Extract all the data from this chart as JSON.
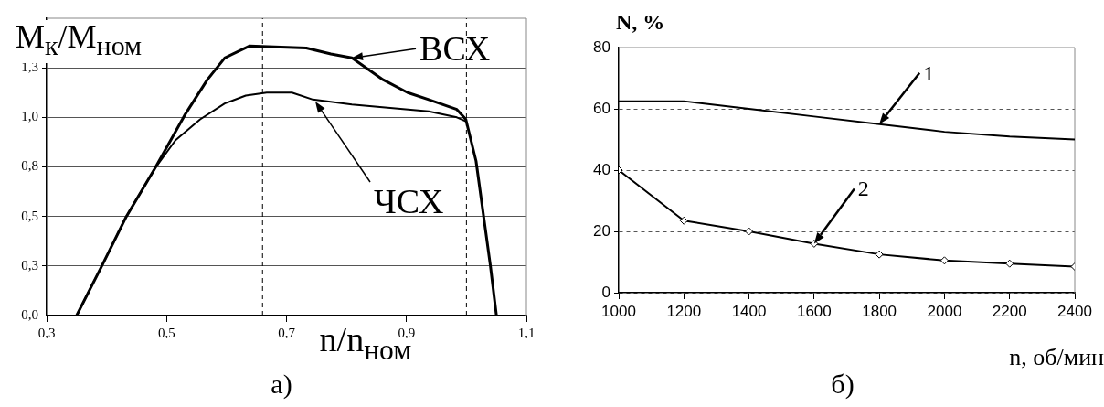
{
  "chart_data": [
    {
      "type": "line",
      "ylabel": "M$_{к}$/M$_{ном}$",
      "xlabel": "n/n$_{ном}$",
      "xlim": [
        0.3,
        1.1
      ],
      "xticks": [
        {
          "value": 0.3,
          "label": "0,3"
        },
        {
          "value": 0.5,
          "label": "0,5"
        },
        {
          "value": 0.7,
          "label": "0,7"
        },
        {
          "value": 0.9,
          "label": "0,9"
        },
        {
          "value": 1.1,
          "label": "1,1"
        }
      ],
      "ylim": [
        0,
        1.5
      ],
      "yticks": [
        {
          "value": 0,
          "label": "0,0"
        },
        {
          "value": 0.25,
          "label": "0,3"
        },
        {
          "value": 0.5,
          "label": "0,5"
        },
        {
          "value": 0.75,
          "label": "0,8"
        },
        {
          "value": 1.0,
          "label": "1,0"
        },
        {
          "value": 1.25,
          "label": "1,3"
        }
      ],
      "grid": "y",
      "legend": false,
      "marker": "none",
      "line_style": "solid",
      "series": [
        {
          "color": "#000000",
          "x": [
            0.35,
            0.392,
            0.433,
            0.48,
            0.53,
            0.568,
            0.597,
            0.638,
            0.733,
            0.774,
            0.809,
            0.861,
            0.902,
            0.937,
            0.984,
            0.999,
            1.016,
            1.04,
            1.05
          ],
          "values": [
            0,
            0.25,
            0.5,
            0.74,
            1.01,
            1.19,
            1.3,
            1.36,
            1.35,
            1.32,
            1.3,
            1.19,
            1.125,
            1.09,
            1.04,
            0.99,
            0.78,
            0.25,
            0
          ]
        },
        {
          "color": "#000000",
          "x": [
            0.35,
            0.392,
            0.433,
            0.48,
            0.515,
            0.556,
            0.597,
            0.632,
            0.667,
            0.709,
            0.744,
            0.809,
            0.937,
            0.984,
            0.999
          ],
          "values": [
            0,
            0.25,
            0.5,
            0.74,
            0.885,
            0.99,
            1.07,
            1.11,
            1.125,
            1.125,
            1.09,
            1.065,
            1.03,
            1.0,
            0.98
          ]
        }
      ],
      "ref_lines": [
        {
          "axis": "x",
          "value": 0.66,
          "line_style": "dashed"
        },
        {
          "axis": "x",
          "value": 1.0,
          "line_style": "dashed"
        }
      ],
      "annotations": [
        {
          "text": "ВСХ",
          "x": 0.809,
          "y": 1.3
        },
        {
          "text": "ЧСХ",
          "x": 0.748,
          "y": 1.08
        },
        "а)"
      ]
    },
    {
      "type": "line",
      "ylabel": "N, %",
      "xlabel": "n, об/мин",
      "xlim": [
        1000,
        2400
      ],
      "xticks": [
        1000,
        1200,
        1400,
        1600,
        1800,
        2000,
        2200,
        2400
      ],
      "ylim": [
        0,
        80
      ],
      "yticks": [
        0,
        20,
        40,
        60,
        80
      ],
      "grid": "y",
      "legend": false,
      "line_style": "solid",
      "x": [
        1000,
        1200,
        1400,
        1600,
        1800,
        2000,
        2200,
        2400
      ],
      "series": [
        {
          "color": "#000000",
          "marker": "none",
          "values": [
            62.5,
            62.5,
            60,
            57.5,
            55,
            52.5,
            51,
            50
          ]
        },
        {
          "color": "#000000",
          "marker": "diamond",
          "values": [
            40,
            23.5,
            20,
            16,
            12.5,
            10.5,
            9.5,
            8.5
          ]
        }
      ],
      "annotations": [
        {
          "text": "1",
          "x": 1800,
          "y": 55
        },
        {
          "text": "2",
          "x": 1600,
          "y": 16
        },
        "б)"
      ]
    }
  ]
}
